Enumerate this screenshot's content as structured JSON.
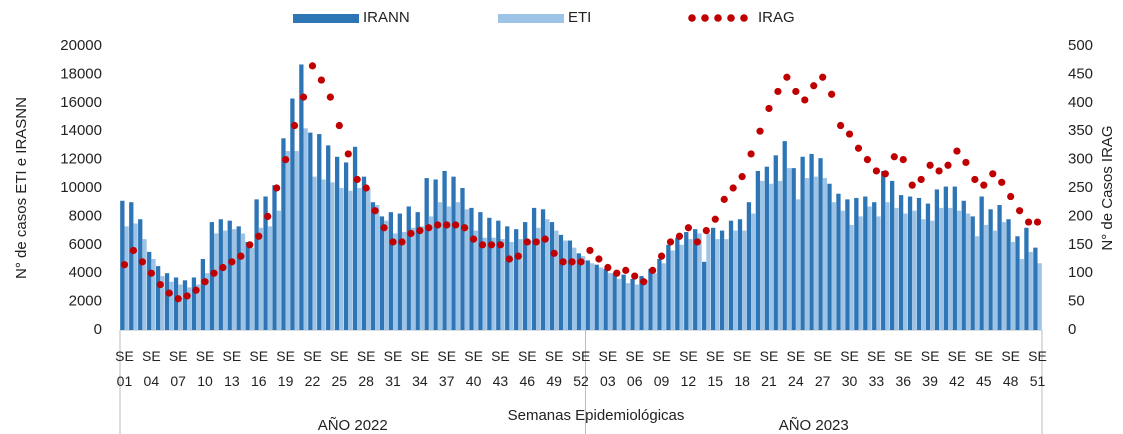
{
  "chart_data": {
    "type": "bar_line",
    "ylabel": "N° de casos ETI e IRASNN",
    "y2label": "N° de Casos IRAG",
    "xlabel": "Semanas Epidemiológicas",
    "x_groups": [
      "AÑO 2022",
      "AÑO 2023"
    ],
    "categories": [
      "SE 01",
      null,
      null,
      "SE 04",
      null,
      null,
      "SE 07",
      null,
      null,
      "SE 10",
      null,
      null,
      "SE 13",
      null,
      null,
      "SE 16",
      null,
      null,
      "SE 19",
      null,
      null,
      "SE 22",
      null,
      null,
      "SE 25",
      null,
      null,
      "SE 28",
      null,
      null,
      "SE 31",
      null,
      null,
      "SE 34",
      null,
      null,
      "SE 37",
      null,
      null,
      "SE 40",
      null,
      null,
      "SE 43",
      null,
      null,
      "SE 46",
      null,
      null,
      "SE 49",
      null,
      null,
      "SE 52",
      null,
      null,
      "SE 03",
      null,
      null,
      "SE 06",
      null,
      null,
      "SE 09",
      null,
      null,
      "SE 12",
      null,
      null,
      "SE 15",
      null,
      null,
      "SE 18",
      null,
      null,
      "SE 21",
      null,
      null,
      "SE 24",
      null,
      null,
      "SE 27",
      null,
      null,
      "SE 30",
      null,
      null,
      "SE 33",
      null,
      null,
      "SE 36",
      null,
      null,
      "SE 39",
      null,
      null,
      "SE 42",
      null,
      null,
      "SE 45",
      null,
      null,
      "SE 48",
      null,
      null,
      "SE 51"
    ],
    "ylim": [
      0,
      20000
    ],
    "yticks": [
      0,
      2000,
      4000,
      6000,
      8000,
      10000,
      12000,
      14000,
      16000,
      18000,
      20000
    ],
    "y2lim": [
      0,
      500
    ],
    "y2ticks": [
      0,
      50,
      100,
      150,
      200,
      250,
      300,
      350,
      400,
      450,
      500
    ],
    "series": [
      {
        "name": "IRANN",
        "color": "#2e75b6",
        "kind": "bar",
        "values": [
          9100,
          9000,
          7800,
          5500,
          4500,
          4000,
          3700,
          3500,
          3700,
          5000,
          7600,
          7800,
          7700,
          7300,
          6200,
          9200,
          9400,
          10200,
          13500,
          16300,
          18700,
          13900,
          13800,
          13000,
          12200,
          11800,
          12900,
          10800,
          9000,
          8000,
          8300,
          8200,
          8700,
          8300,
          10700,
          10600,
          11200,
          10800,
          10000,
          8600,
          8300,
          7900,
          7700,
          7300,
          7100,
          7600,
          8600,
          8500,
          7600,
          6700,
          6300,
          5400,
          4900,
          4600,
          4300,
          4000,
          3900,
          3600,
          3800,
          4300,
          5000,
          6000,
          6500,
          6900,
          7100,
          4800,
          7200,
          7000,
          7700,
          7800,
          9000,
          11200,
          11500,
          12300,
          13300,
          11400,
          12200,
          12400,
          12100,
          10300,
          9600,
          9200,
          9300,
          9400,
          9000,
          11200,
          10500,
          9500,
          9400,
          9300,
          8900,
          9900,
          10100,
          10100,
          9100,
          8000,
          9400,
          8500,
          8800,
          7800,
          6600,
          7200,
          5800
        ]
      },
      {
        "name": "ETI",
        "color": "#9dc3e6",
        "kind": "bar",
        "values": [
          7300,
          7500,
          6400,
          5000,
          3800,
          3400,
          3200,
          3000,
          3200,
          4000,
          6800,
          7000,
          7100,
          6800,
          5800,
          7200,
          7300,
          8400,
          12600,
          12600,
          14200,
          10800,
          10600,
          10400,
          10000,
          9800,
          10000,
          10000,
          8800,
          7700,
          6800,
          6900,
          7200,
          7300,
          8000,
          9000,
          8700,
          9000,
          8500,
          7000,
          6500,
          6500,
          6400,
          6200,
          6400,
          6300,
          7200,
          7800,
          7000,
          6300,
          5800,
          5200,
          4700,
          4400,
          4000,
          3600,
          3300,
          3200,
          3500,
          4000,
          4700,
          5600,
          6000,
          6400,
          6800,
          6800,
          6400,
          6400,
          7000,
          7000,
          8200,
          10500,
          10300,
          10500,
          11400,
          9200,
          10700,
          10800,
          10700,
          9000,
          8400,
          7400,
          8000,
          8700,
          8000,
          9000,
          8600,
          8200,
          8400,
          7800,
          7700,
          8600,
          8600,
          8400,
          8200,
          6600,
          7400,
          7000,
          7600,
          6200,
          5000,
          5500,
          4700
        ]
      },
      {
        "name": "IRAG",
        "color": "#c00000",
        "kind": "dots",
        "axis": "y2",
        "values": [
          115,
          140,
          120,
          100,
          80,
          65,
          55,
          60,
          70,
          85,
          100,
          110,
          120,
          130,
          150,
          165,
          200,
          250,
          300,
          360,
          410,
          465,
          440,
          410,
          360,
          310,
          265,
          250,
          210,
          180,
          155,
          155,
          170,
          175,
          180,
          185,
          185,
          185,
          180,
          160,
          150,
          150,
          150,
          125,
          130,
          155,
          155,
          160,
          135,
          120,
          120,
          120,
          140,
          125,
          110,
          100,
          105,
          95,
          85,
          105,
          130,
          155,
          165,
          180,
          155,
          175,
          195,
          230,
          250,
          270,
          310,
          350,
          390,
          420,
          445,
          420,
          405,
          430,
          445,
          415,
          360,
          345,
          320,
          300,
          280,
          275,
          305,
          300,
          255,
          265,
          290,
          280,
          290,
          315,
          295,
          265,
          255,
          275,
          260,
          235,
          210,
          190,
          190
        ]
      }
    ]
  }
}
